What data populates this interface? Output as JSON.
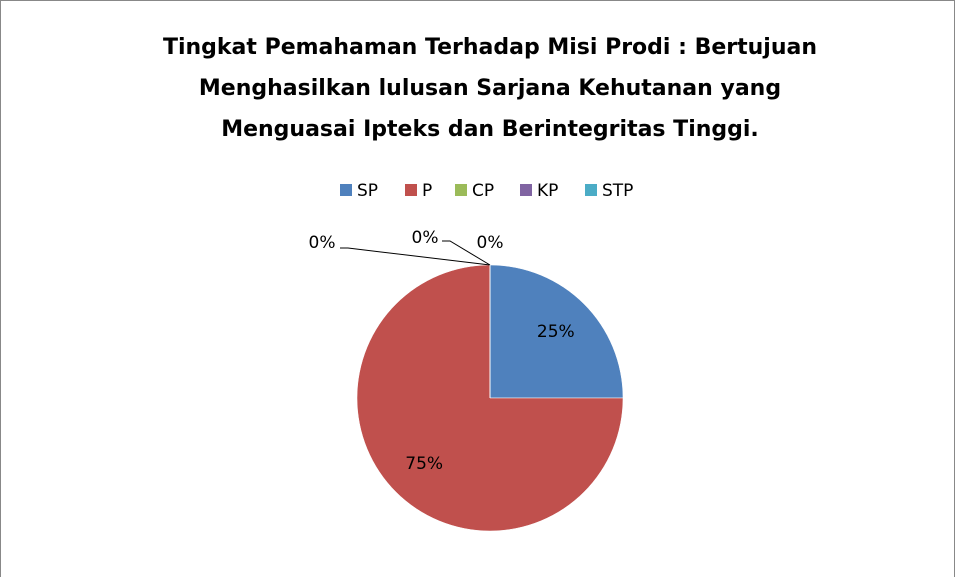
{
  "chart_data": {
    "type": "pie",
    "title": [
      "Tingkat Pemahaman Terhadap  Misi Prodi : Bertujuan",
      "Menghasilkan lulusan Sarjana Kehutanan yang",
      "Menguasai Ipteks dan Berintegritas Tinggi."
    ],
    "categories": [
      "SP",
      "P",
      "CP",
      "KP",
      "STP"
    ],
    "values": [
      25,
      75,
      0,
      0,
      0
    ],
    "value_labels": [
      "25%",
      "75%",
      "0%",
      "0%",
      "0%"
    ],
    "colors": [
      "#4f81bd",
      "#c0504d",
      "#9bbb59",
      "#8064a2",
      "#4bacc6"
    ],
    "legend": "top"
  }
}
